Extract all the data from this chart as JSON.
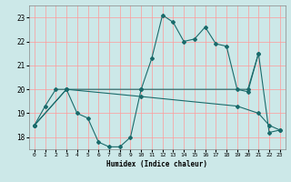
{
  "xlabel": "Humidex (Indice chaleur)",
  "bg_color": "#cce8e8",
  "grid_color": "#ff9999",
  "line_color": "#1a6b6b",
  "series": [
    {
      "x": [
        0,
        1,
        2,
        3,
        4,
        5,
        6,
        7,
        8,
        9,
        10,
        11,
        12,
        13,
        14,
        15,
        16,
        17,
        18,
        19,
        20,
        21,
        22,
        23
      ],
      "y": [
        18.5,
        19.3,
        20.0,
        20.0,
        19.0,
        18.8,
        17.8,
        17.6,
        17.6,
        18.0,
        20.0,
        21.3,
        23.1,
        22.8,
        22.0,
        22.1,
        22.6,
        21.9,
        21.8,
        20.0,
        19.9,
        21.5,
        18.2,
        18.3
      ]
    },
    {
      "x": [
        0,
        3,
        10,
        20,
        21
      ],
      "y": [
        18.5,
        20.0,
        20.0,
        20.0,
        21.5
      ]
    },
    {
      "x": [
        0,
        3,
        10,
        19,
        21,
        22,
        23
      ],
      "y": [
        18.5,
        20.0,
        19.7,
        19.3,
        19.0,
        18.5,
        18.3
      ]
    }
  ],
  "xlim": [
    -0.5,
    23.5
  ],
  "ylim": [
    17.5,
    23.5
  ],
  "yticks": [
    18,
    19,
    20,
    21,
    22,
    23
  ],
  "xticks": [
    0,
    1,
    2,
    3,
    4,
    5,
    6,
    7,
    8,
    9,
    10,
    11,
    12,
    13,
    14,
    15,
    16,
    17,
    18,
    19,
    20,
    21,
    22,
    23
  ]
}
